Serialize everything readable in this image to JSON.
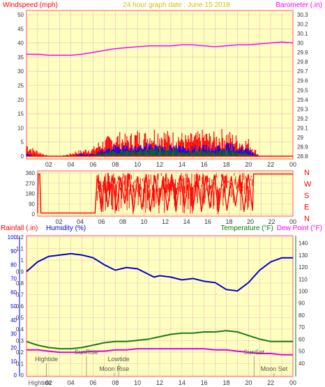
{
  "header": {
    "left_title": "Windspeed (mph)",
    "center_title": "24 hour graph date : June 15 2018",
    "right_title": "Barometer (.in)"
  },
  "colors": {
    "plot_bg": "#ffffc0",
    "frame": "#ff5a5a",
    "grid": "#e8bcbc",
    "windspeed": "#ff0000",
    "gust": "#ff0000",
    "wind_blue": "#0000ff",
    "wind_green": "#008000",
    "barometer": "#ff00ff",
    "direction": "#ff0000",
    "humidity": "#0000cc",
    "temperature": "#1a7a1a",
    "dew_point": "#e000e0",
    "rain_axis_text": "#ff0000",
    "humidity_text": "#0000cc",
    "temp_text": "#008000",
    "dew_text": "#ff00ff",
    "title_text": "#d4c400"
  },
  "x_ticks": [
    "02",
    "04",
    "06",
    "08",
    "10",
    "12",
    "14",
    "16",
    "18",
    "20",
    "22",
    "00"
  ],
  "chart_data": [
    {
      "type": "line",
      "title": "24 hour graph date : June 15 2018",
      "panel": "wind-barometer",
      "x_range": [
        0,
        24
      ],
      "y_left": {
        "label": "Windspeed (mph)",
        "range": [
          0,
          50
        ],
        "ticks": [
          0,
          5,
          10,
          15,
          20,
          25,
          30,
          35,
          40,
          45,
          50
        ]
      },
      "y_right": {
        "label": "Barometer (.in)",
        "range": [
          28.8,
          30.3
        ],
        "ticks": [
          "28.8",
          "28.9",
          "29",
          "29.1",
          "29.2",
          "29.3",
          "29.4",
          "29.5",
          "29.6",
          "29.7",
          "29.8",
          "29.9",
          "30",
          "30.1",
          "30.2",
          "30.3"
        ]
      },
      "series": [
        {
          "name": "Barometer",
          "axis": "right",
          "x": [
            0,
            1,
            2,
            3,
            4,
            5,
            6,
            7,
            8,
            9,
            10,
            11,
            12,
            13,
            14,
            15,
            16,
            17,
            18,
            19,
            20,
            21,
            22,
            23,
            24
          ],
          "y": [
            29.88,
            29.88,
            29.87,
            29.87,
            29.87,
            29.88,
            29.9,
            29.92,
            29.94,
            29.95,
            29.96,
            29.97,
            29.97,
            29.97,
            29.98,
            29.98,
            29.97,
            29.96,
            29.97,
            29.98,
            29.98,
            29.99,
            30.0,
            30.01,
            30.0
          ]
        },
        {
          "name": "Wind gust",
          "axis": "left",
          "x": [
            0,
            0.5,
            1,
            1.5,
            2,
            3,
            4,
            4.5,
            5,
            5.5,
            6,
            6.5,
            7,
            7.5,
            8,
            8.5,
            9,
            9.5,
            10,
            10.5,
            11,
            11.5,
            12,
            12.5,
            13,
            13.5,
            14,
            14.5,
            15,
            15.5,
            16,
            16.5,
            17,
            17.5,
            18,
            18.5,
            19,
            19.5,
            20,
            20.5,
            21,
            22,
            23,
            24
          ],
          "y": [
            5,
            3,
            2,
            1,
            0,
            0,
            1,
            2,
            2,
            3,
            3,
            5,
            6,
            7,
            8,
            8,
            7,
            8,
            9,
            8,
            9,
            10,
            10,
            9,
            8,
            9,
            8,
            7,
            8,
            8,
            9,
            8,
            8,
            9,
            9,
            8,
            7,
            6,
            6,
            3,
            0,
            0,
            0,
            0
          ]
        },
        {
          "name": "Wind speed",
          "axis": "left",
          "x": [
            0,
            1,
            2,
            3,
            4,
            5,
            6,
            7,
            8,
            9,
            10,
            11,
            12,
            13,
            14,
            15,
            16,
            17,
            18,
            19,
            20,
            21,
            22,
            23,
            24
          ],
          "y": [
            1,
            0,
            0,
            0,
            0,
            1,
            1,
            3,
            4,
            4,
            4,
            5,
            5,
            4,
            4,
            4,
            4,
            4,
            5,
            4,
            3,
            0,
            0,
            0,
            0
          ]
        },
        {
          "name": "Wind average",
          "axis": "left",
          "x": [
            0,
            1,
            2,
            3,
            4,
            5,
            6,
            7,
            8,
            9,
            10,
            11,
            12,
            13,
            14,
            15,
            16,
            17,
            18,
            19,
            20,
            21,
            22,
            23,
            24
          ],
          "y": [
            0,
            0,
            0,
            0,
            0,
            0,
            0.5,
            1.5,
            2,
            2,
            2,
            2.5,
            3,
            2.5,
            2,
            2,
            2,
            2,
            2.5,
            2,
            1,
            0,
            0,
            0,
            0
          ]
        }
      ]
    },
    {
      "type": "line",
      "panel": "wind-direction",
      "x_range": [
        0,
        24
      ],
      "y_left": {
        "range": [
          0,
          360
        ],
        "ticks": [
          0,
          90,
          180,
          270,
          360
        ]
      },
      "y_right_labels": [
        "N",
        "W",
        "S",
        "E",
        "N"
      ],
      "series": [
        {
          "name": "Wind direction",
          "x": [
            0,
            0.05,
            0.2,
            0.3,
            5.4,
            5.6,
            6.0,
            6.3,
            6.6,
            7.0,
            7.4,
            7.8,
            8.2,
            8.6,
            9.0,
            9.4,
            9.8,
            10.2,
            10.6,
            11.0,
            11.4,
            11.8,
            12.2,
            12.6,
            13.0,
            13.4,
            13.8,
            14.2,
            14.6,
            15.0,
            15.4,
            15.8,
            16.2,
            16.6,
            17.0,
            17.4,
            17.8,
            18.2,
            18.6,
            19.0,
            19.4,
            19.8,
            20.2,
            20.3,
            24
          ],
          "y": [
            10,
            350,
            350,
            10,
            10,
            340,
            20,
            330,
            60,
            340,
            30,
            320,
            90,
            350,
            20,
            330,
            40,
            350,
            20,
            340,
            70,
            330,
            30,
            350,
            20,
            340,
            60,
            320,
            30,
            350,
            20,
            330,
            50,
            340,
            20,
            350,
            30,
            330,
            70,
            340,
            20,
            350,
            30,
            350,
            350
          ]
        }
      ]
    },
    {
      "type": "line",
      "panel": "temperature-humidity",
      "x_range": [
        0,
        24
      ],
      "y_left_outer": {
        "label": "Rainfall (.in)",
        "range": [
          0,
          1.2
        ],
        "ticks": [
          "0",
          "0.1",
          "0.2",
          "0.3",
          "0.4",
          "0.5",
          "0.6",
          "0.7",
          "0.8",
          "0.9",
          "1",
          "1.1",
          "1.2"
        ]
      },
      "y_left_inner": {
        "label": "Humidity (%)",
        "range": [
          0,
          100
        ],
        "ticks": [
          "0",
          "10",
          "20",
          "30",
          "40",
          "50",
          "60",
          "70",
          "80",
          "90",
          "100"
        ]
      },
      "y_right": {
        "label": "Temperature (°F)",
        "range": [
          30,
          145
        ],
        "ticks": [
          "40",
          "50",
          "60",
          "70",
          "80",
          "90",
          "100",
          "110",
          "120",
          "130",
          "140"
        ]
      },
      "y_right_second_label": "Dew Point (°F)",
      "series": [
        {
          "name": "Humidity",
          "axis": "humidity",
          "x": [
            0,
            1,
            2,
            3,
            4,
            5,
            6,
            7,
            7.5,
            8,
            9,
            10,
            11,
            11.5,
            12,
            13,
            14,
            15,
            16,
            17,
            18,
            19,
            20,
            21,
            22,
            23,
            24
          ],
          "y": [
            75,
            82,
            86,
            87,
            88,
            87,
            85,
            80,
            78,
            76,
            78,
            77,
            73,
            71,
            72,
            71,
            69,
            70,
            68,
            67,
            62,
            61,
            67,
            76,
            82,
            85,
            85
          ]
        },
        {
          "name": "Temperature",
          "axis": "right",
          "x": [
            0,
            1,
            2,
            3,
            4,
            5,
            6,
            7,
            8,
            9,
            10,
            11,
            12,
            13,
            14,
            15,
            16,
            17,
            18,
            19,
            20,
            21,
            22,
            23,
            24
          ],
          "y": [
            58,
            55,
            53,
            52,
            52,
            53,
            55,
            57,
            58,
            58,
            59,
            60,
            62,
            64,
            65,
            65,
            66,
            66,
            67,
            66,
            63,
            60,
            58,
            58,
            58
          ]
        },
        {
          "name": "Dew Point",
          "axis": "right",
          "x": [
            0,
            1,
            2,
            3,
            4,
            5,
            6,
            7,
            8,
            9,
            10,
            11,
            12,
            13,
            14,
            15,
            16,
            17,
            18,
            19,
            20,
            21,
            22,
            23,
            24
          ],
          "y": [
            51,
            51,
            50,
            49,
            49,
            49,
            50,
            50,
            51,
            51,
            52,
            52,
            52,
            52,
            52,
            52,
            52,
            51,
            51,
            50,
            49,
            48,
            48,
            47,
            47
          ]
        }
      ],
      "annotations": [
        {
          "text": "Hightide",
          "x": 1.8,
          "row": "upper"
        },
        {
          "text": "SunRise",
          "x": 5.4,
          "row": "top"
        },
        {
          "text": "Lowtide",
          "x": 8.3,
          "row": "upper"
        },
        {
          "text": "Moon Rise",
          "x": 7.9,
          "row": "lower"
        },
        {
          "text": "SunSet",
          "x": 20.5,
          "row": "top"
        },
        {
          "text": "Moon Set",
          "x": 22.3,
          "row": "lower"
        },
        {
          "text": "Hightide",
          "x": 1.2,
          "row": "bottom"
        }
      ]
    }
  ],
  "axis_labels": {
    "rainfall": "Rainfall (.in)",
    "humidity": "Humidity (%)",
    "temperature": "Temperature (°F)",
    "dew_point": "Dew Point (°F)"
  }
}
